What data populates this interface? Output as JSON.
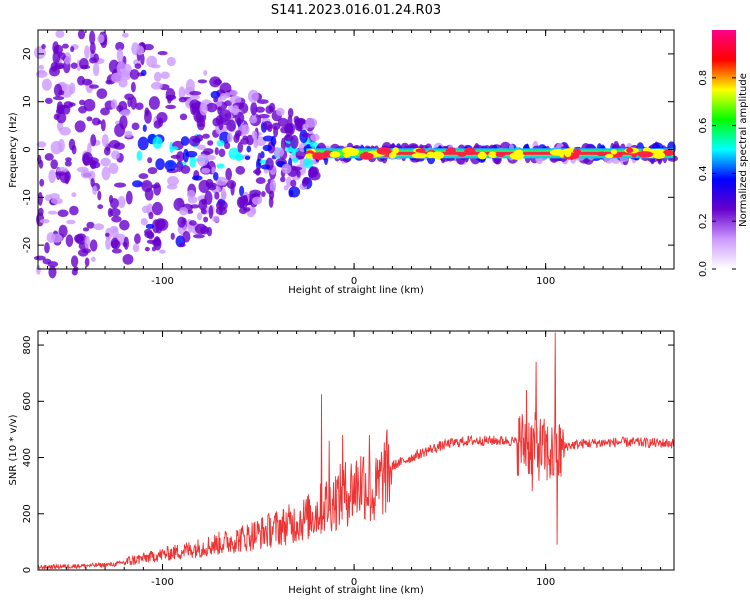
{
  "title": "S141.2023.016.01.24.R03",
  "chart_data": [
    {
      "type": "heatmap",
      "xlabel": "Height of straight line (km)",
      "ylabel": "Frequency (Hz)",
      "xlim": [
        -165,
        167
      ],
      "ylim": [
        -25,
        25
      ],
      "xticks": [
        -100,
        0,
        100
      ],
      "xtick_labels": [
        "-100",
        "0",
        "100"
      ],
      "yticks": [
        -20,
        -10,
        0,
        10,
        20
      ],
      "ytick_labels": [
        "-20",
        "-10",
        "0",
        "10",
        "20"
      ],
      "ridge_frequency_hz": -0.8,
      "colorbar": {
        "label": "Normalized spectral amplitude",
        "range": [
          0.0,
          1.0
        ],
        "ticks": [
          0.0,
          0.2,
          0.4,
          0.6,
          0.8
        ],
        "tick_labels": [
          "0.0",
          "0.2",
          "0.4",
          "0.6",
          "0.8"
        ],
        "colors": [
          "#ffffff",
          "#cc99ff",
          "#6600cc",
          "#0000ff",
          "#00ffff",
          "#00ff00",
          "#ffff00",
          "#ff0000",
          "#ff0088"
        ]
      },
      "grid": false
    },
    {
      "type": "line",
      "xlabel": "Height of straight line (km)",
      "ylabel": "SNR (10 * v/v)",
      "xlim": [
        -165,
        167
      ],
      "ylim": [
        0,
        850
      ],
      "xticks": [
        -100,
        0,
        100
      ],
      "xtick_labels": [
        "-100",
        "0",
        "100"
      ],
      "yticks": [
        0,
        200,
        400,
        600,
        800
      ],
      "ytick_labels": [
        "0",
        "200",
        "400",
        "600",
        "800"
      ],
      "series": [
        {
          "color": "#ee3333",
          "x": [
            -165,
            -140,
            -125,
            -115,
            -100,
            -80,
            -60,
            -50,
            -40,
            -30,
            -20,
            -15,
            -10,
            -5,
            0,
            5,
            10,
            15,
            20,
            30,
            40,
            50,
            60,
            70,
            80,
            90,
            95,
            100,
            105,
            110,
            120,
            140,
            167
          ],
          "values": [
            10,
            15,
            20,
            35,
            55,
            80,
            110,
            130,
            150,
            170,
            200,
            230,
            250,
            270,
            290,
            320,
            260,
            330,
            370,
            400,
            430,
            450,
            460,
            460,
            460,
            450,
            440,
            420,
            400,
            440,
            450,
            455,
            450
          ]
        }
      ],
      "spikes": [
        {
          "x": -17,
          "value": 625
        },
        {
          "x": -13,
          "value": 460
        },
        {
          "x": -6,
          "value": 480
        },
        {
          "x": 8,
          "value": 480
        },
        {
          "x": 90,
          "value": 640
        },
        {
          "x": 95,
          "value": 740
        },
        {
          "x": 105,
          "value": 845
        },
        {
          "x": 106,
          "value": 90
        },
        {
          "x": 93,
          "value": 280
        }
      ],
      "grid": false
    }
  ]
}
